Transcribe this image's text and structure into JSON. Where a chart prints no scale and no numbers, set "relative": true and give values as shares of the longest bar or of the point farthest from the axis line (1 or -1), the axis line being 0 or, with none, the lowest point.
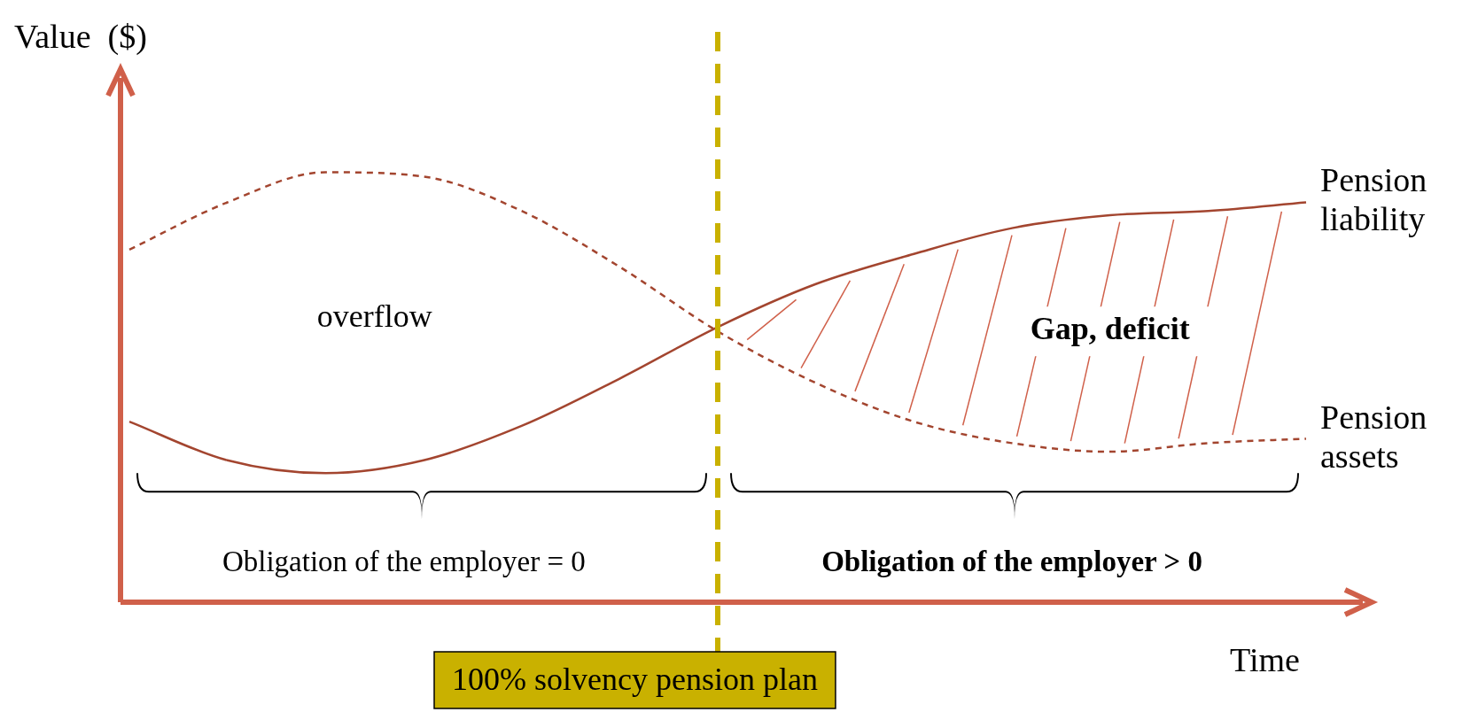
{
  "chart_data": {
    "type": "line",
    "relative": true,
    "xlabel": "Time",
    "ylabel": "Value  ($)",
    "categories": [
      null,
      null,
      null,
      null,
      null,
      null,
      null,
      null,
      null,
      null,
      null,
      null,
      null
    ],
    "series": [
      {
        "name": "Pension liability",
        "color": "#a3452f",
        "line_style": "solid",
        "values": [
          0.42,
          0.33,
          0.3,
          0.33,
          0.41,
          0.52,
          0.64,
          0.74,
          0.81,
          0.87,
          0.9,
          0.91,
          0.93
        ]
      },
      {
        "name": "Pension assets",
        "color": "#a3452f",
        "line_style": "dashed",
        "values": [
          0.82,
          0.93,
          1.0,
          0.99,
          0.91,
          0.78,
          0.63,
          0.51,
          0.42,
          0.37,
          0.35,
          0.37,
          0.38
        ]
      }
    ],
    "annotations": [
      "overflow",
      "Gap, deficit",
      "Obligation of the employer = 0",
      "Obligation of the employer > 0",
      "100% solvency pension plan"
    ],
    "legend": false,
    "marker": "none",
    "tick_labels": false
  }
}
